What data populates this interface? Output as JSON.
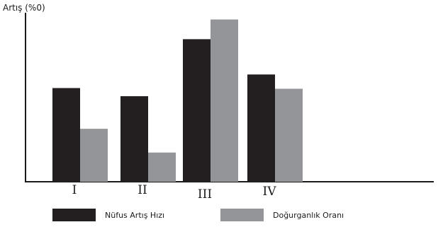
{
  "chart_data": {
    "type": "bar",
    "ylabel": "Artış (%0)",
    "categories": [
      "I",
      "II",
      "III",
      "IV"
    ],
    "series": [
      {
        "name": "Nüfus Artış Hızı",
        "color": "#231f20",
        "values": [
          138,
          126,
          210,
          158
        ]
      },
      {
        "name": "Doğurganlık Oranı",
        "color": "#939598",
        "values": [
          78,
          43,
          239,
          137
        ]
      }
    ],
    "ylim": [
      0,
      250
    ],
    "grid": false,
    "legend": "bottom"
  }
}
